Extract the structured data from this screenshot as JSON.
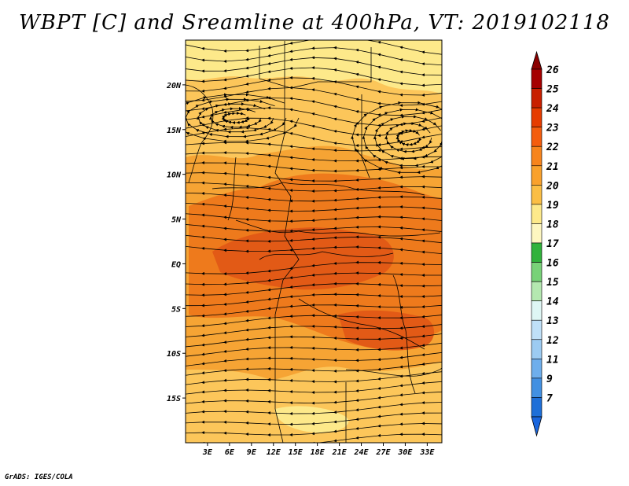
{
  "title": "WBPT [C] and Sreamline at 400hPa, VT: 2019102118",
  "footer": "GrADS: IGES/COLA",
  "map": {
    "lon_range": [
      0,
      35
    ],
    "lat_range": [
      -20,
      25
    ],
    "lon_ticks": [
      {
        "value": 3,
        "label": "3E"
      },
      {
        "value": 6,
        "label": "6E"
      },
      {
        "value": 9,
        "label": "9E"
      },
      {
        "value": 12,
        "label": "12E"
      },
      {
        "value": 15,
        "label": "15E"
      },
      {
        "value": 18,
        "label": "18E"
      },
      {
        "value": 21,
        "label": "21E"
      },
      {
        "value": 24,
        "label": "24E"
      },
      {
        "value": 27,
        "label": "27E"
      },
      {
        "value": 30,
        "label": "30E"
      },
      {
        "value": 33,
        "label": "33E"
      }
    ],
    "lat_ticks": [
      {
        "value": 20,
        "label": "20N"
      },
      {
        "value": 15,
        "label": "15N"
      },
      {
        "value": 10,
        "label": "10N"
      },
      {
        "value": 5,
        "label": "5N"
      },
      {
        "value": 0,
        "label": "EQ"
      },
      {
        "value": -5,
        "label": "5S"
      },
      {
        "value": -10,
        "label": "10S"
      },
      {
        "value": -15,
        "label": "15S"
      }
    ],
    "field": "wet-bulb potential temperature",
    "field_colors": {
      "c19": "#fde98a",
      "c20": "#fcc65a",
      "c21": "#f6a434",
      "c22": "#ee7a1c",
      "c23": "#e25a16"
    }
  },
  "colorbar": {
    "levels": [
      "26",
      "25",
      "24",
      "23",
      "22",
      "21",
      "20",
      "19",
      "18",
      "17",
      "16",
      "15",
      "14",
      "13",
      "12",
      "11",
      "9",
      "7"
    ],
    "colors": [
      "#a50000",
      "#c81f00",
      "#e63c00",
      "#f45d0e",
      "#f7841c",
      "#f9a12c",
      "#fbbe44",
      "#fde98a",
      "#fdf6c0",
      "#31b23c",
      "#78d278",
      "#b4e8b0",
      "#def6f4",
      "#bfe0f8",
      "#9ccbf2",
      "#6eaeec",
      "#4290e2",
      "#1e6fd8"
    ],
    "top_arrow_color": "#8a0000",
    "bottom_arrow_color": "#1a66dd"
  }
}
